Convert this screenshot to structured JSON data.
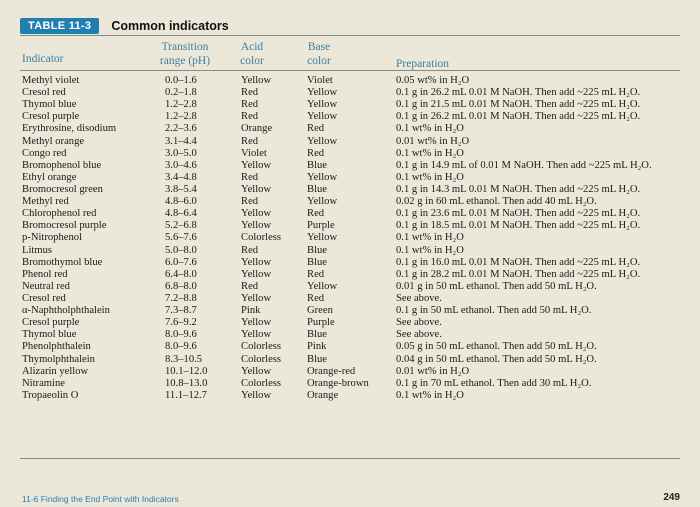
{
  "table": {
    "badge": "TABLE 11-3",
    "title": "Common indicators",
    "headers": {
      "indicator": "Indicator",
      "transition_1": "Transition",
      "transition_2": "range (pH)",
      "acid_1": "Acid",
      "acid_2": "color",
      "base_1": "Base",
      "base_2": "color",
      "preparation": "Preparation"
    },
    "rows": [
      {
        "indicator": "Methyl violet",
        "range": "0.0–1.6",
        "acid": "Yellow",
        "base": "Violet",
        "prep": "0.05 wt% in H₂O"
      },
      {
        "indicator": "Cresol red",
        "range": "0.2–1.8",
        "acid": "Red",
        "base": "Yellow",
        "prep": "0.1 g in 26.2 mL 0.01 M NaOH. Then add ~225 mL H₂O."
      },
      {
        "indicator": "Thymol blue",
        "range": "1.2–2.8",
        "acid": "Red",
        "base": "Yellow",
        "prep": "0.1 g in 21.5 mL 0.01 M NaOH. Then add ~225 mL H₂O."
      },
      {
        "indicator": "Cresol purple",
        "range": "1.2–2.8",
        "acid": "Red",
        "base": "Yellow",
        "prep": "0.1 g in 26.2 mL 0.01 M NaOH. Then add ~225 mL H₂O."
      },
      {
        "indicator": "Erythrosine, disodium",
        "range": "2.2–3.6",
        "acid": "Orange",
        "base": "Red",
        "prep": "0.1 wt% in H₂O"
      },
      {
        "indicator": "Methyl orange",
        "range": "3.1–4.4",
        "acid": "Red",
        "base": "Yellow",
        "prep": "0.01 wt% in H₂O"
      },
      {
        "indicator": "Congo red",
        "range": "3.0–5.0",
        "acid": "Violet",
        "base": "Red",
        "prep": "0.1 wt% in H₂O"
      },
      {
        "indicator": "Bromophenol blue",
        "range": "3.0–4.6",
        "acid": "Yellow",
        "base": "Blue",
        "prep": "0.1 g in 14.9 mL of 0.01 M NaOH. Then add ~225 mL H₂O."
      },
      {
        "indicator": "Ethyl orange",
        "range": "3.4–4.8",
        "acid": "Red",
        "base": "Yellow",
        "prep": "0.1 wt% in H₂O"
      },
      {
        "indicator": "Bromocresol green",
        "range": "3.8–5.4",
        "acid": "Yellow",
        "base": "Blue",
        "prep": "0.1 g in 14.3 mL 0.01 M NaOH. Then add ~225 mL H₂O."
      },
      {
        "indicator": "Methyl red",
        "range": "4.8–6.0",
        "acid": "Red",
        "base": "Yellow",
        "prep": "0.02 g in 60 mL ethanol. Then add 40 mL H₂O."
      },
      {
        "indicator": "Chlorophenol red",
        "range": "4.8–6.4",
        "acid": "Yellow",
        "base": "Red",
        "prep": "0.1 g in 23.6 mL 0.01 M NaOH. Then add ~225 mL H₂O."
      },
      {
        "indicator": "Bromocresol purple",
        "range": "5.2–6.8",
        "acid": "Yellow",
        "base": "Purple",
        "prep": "0.1 g in 18.5 mL 0.01 M NaOH. Then add ~225 mL H₂O."
      },
      {
        "indicator": "p-Nitrophenol",
        "range": "5.6–7.6",
        "acid": "Colorless",
        "base": "Yellow",
        "prep": "0.1 wt% in H₂O"
      },
      {
        "indicator": "Litmus",
        "range": "5.0–8.0",
        "acid": "Red",
        "base": "Blue",
        "prep": "0.1 wt% in H₂O"
      },
      {
        "indicator": "Bromothymol blue",
        "range": "6.0–7.6",
        "acid": "Yellow",
        "base": "Blue",
        "prep": "0.1 g in 16.0 mL 0.01 M NaOH. Then add ~225 mL H₂O."
      },
      {
        "indicator": "Phenol red",
        "range": "6.4–8.0",
        "acid": "Yellow",
        "base": "Red",
        "prep": "0.1 g in 28.2 mL 0.01 M NaOH. Then add ~225 mL H₂O."
      },
      {
        "indicator": "Neutral red",
        "range": "6.8–8.0",
        "acid": "Red",
        "base": "Yellow",
        "prep": "0.01 g in 50 mL ethanol. Then add 50 mL H₂O."
      },
      {
        "indicator": "Cresol red",
        "range": "7.2–8.8",
        "acid": "Yellow",
        "base": "Red",
        "prep": "See above."
      },
      {
        "indicator": "α-Naphtholphthalein",
        "range": "7.3–8.7",
        "acid": "Pink",
        "base": "Green",
        "prep": "0.1 g in 50 mL ethanol. Then add 50 mL H₂O."
      },
      {
        "indicator": "Cresol purple",
        "range": "7.6–9.2",
        "acid": "Yellow",
        "base": "Purple",
        "prep": "See above."
      },
      {
        "indicator": "Thymol blue",
        "range": "8.0–9.6",
        "acid": "Yellow",
        "base": "Blue",
        "prep": "See above."
      },
      {
        "indicator": "Phenolphthalein",
        "range": "8.0–9.6",
        "acid": "Colorless",
        "base": "Pink",
        "prep": "0.05 g in 50 mL ethanol. Then add 50 mL H₂O."
      },
      {
        "indicator": "Thymolphthalein",
        "range": "8.3–10.5",
        "acid": "Colorless",
        "base": "Blue",
        "prep": "0.04 g in 50 mL ethanol. Then add 50 mL H₂O."
      },
      {
        "indicator": "Alizarin yellow",
        "range": "10.1–12.0",
        "acid": "Yellow",
        "base": "Orange-red",
        "prep": "0.01 wt% in H₂O"
      },
      {
        "indicator": "Nitramine",
        "range": "10.8–13.0",
        "acid": "Colorless",
        "base": "Orange-brown",
        "prep": "0.1 g in 70 mL ethanol. Then add 30 mL H₂O."
      },
      {
        "indicator": "Tropaeolin O",
        "range": "11.1–12.7",
        "acid": "Yellow",
        "base": "Orange",
        "prep": "0.1 wt% in H₂O"
      }
    ]
  },
  "footer": {
    "section": "11-6   Finding the End Point with Indicators",
    "page_number": "249"
  },
  "colors": {
    "badge": "#1f7fb0",
    "header_text": "#3a7fa5",
    "paper": "#ebe7d9"
  }
}
